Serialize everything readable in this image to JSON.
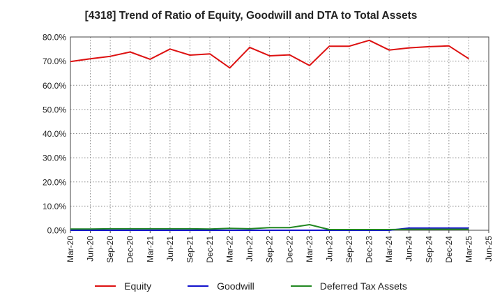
{
  "chart_data": {
    "type": "line",
    "title": "[4318]  Trend of Ratio of Equity, Goodwill and DTA to Total Assets",
    "xlabel": "",
    "ylabel": "",
    "ylim": [
      0,
      80
    ],
    "y_ticks": [
      "0.0%",
      "10.0%",
      "20.0%",
      "30.0%",
      "40.0%",
      "50.0%",
      "60.0%",
      "70.0%",
      "80.0%"
    ],
    "x": [
      "Mar-20",
      "Jun-20",
      "Sep-20",
      "Dec-20",
      "Mar-21",
      "Jun-21",
      "Sep-21",
      "Dec-21",
      "Mar-22",
      "Jun-22",
      "Sep-22",
      "Dec-22",
      "Mar-23",
      "Jun-23",
      "Sep-23",
      "Dec-23",
      "Mar-24",
      "Jun-24",
      "Sep-24",
      "Dec-24",
      "Mar-25",
      "Jun-25"
    ],
    "grid": true,
    "legend_position": "bottom",
    "series": [
      {
        "name": "Equity",
        "color": "#dd1111",
        "values": [
          69.8,
          71.0,
          72.0,
          73.8,
          70.8,
          75.0,
          72.5,
          73.0,
          67.2,
          75.7,
          72.2,
          72.6,
          68.2,
          76.2,
          76.2,
          78.6,
          74.6,
          75.5,
          76.0,
          76.3,
          71.0,
          null
        ]
      },
      {
        "name": "Goodwill",
        "color": "#1111cc",
        "values": [
          0,
          0,
          0,
          0,
          0,
          0,
          0,
          0,
          0,
          0,
          0,
          0,
          0,
          0,
          0,
          0,
          0,
          0.9,
          0.9,
          0.9,
          0.9,
          null
        ]
      },
      {
        "name": "Deferred Tax Assets",
        "color": "#228822",
        "values": [
          0.5,
          0.5,
          0.6,
          0.6,
          0.6,
          0.6,
          0.6,
          0.5,
          0.8,
          0.6,
          1.1,
          1.1,
          2.3,
          0.3,
          0.3,
          0.3,
          0.3,
          0.4,
          0.4,
          0.4,
          0.4,
          null
        ]
      }
    ]
  }
}
